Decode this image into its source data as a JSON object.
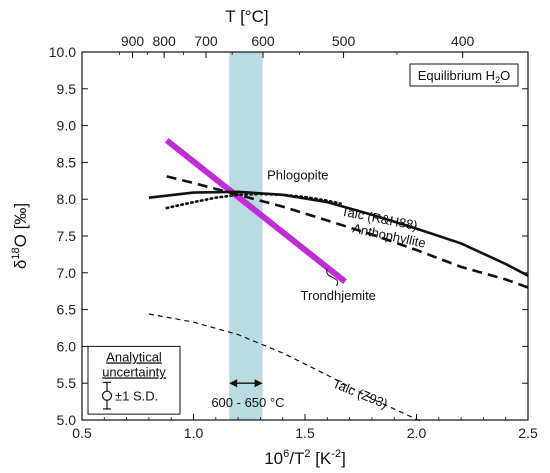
{
  "chart_data": {
    "type": "line",
    "xlabel": {
      "base": "10",
      "sup1": "6",
      "mid": "/T",
      "sup2": "2",
      "tail": " [K",
      "sup3": "-2",
      "end": "]"
    },
    "ylabel": {
      "delta": "δ",
      "sup": "18",
      "rest": "O [‰]"
    },
    "toplabel": "T [°C]",
    "xlim": [
      0.5,
      2.5
    ],
    "ylim": [
      5.0,
      10.0
    ],
    "xticks": [
      "0.5",
      "1.0",
      "1.5",
      "2.0",
      "2.5"
    ],
    "yticks": [
      "5.0",
      "5.5",
      "6.0",
      "6.5",
      "7.0",
      "7.5",
      "8.0",
      "8.5",
      "9.0",
      "9.5",
      "10.0"
    ],
    "top_ticks": [
      {
        "label": "900",
        "celsius": 900
      },
      {
        "label": "800",
        "celsius": 800
      },
      {
        "label": "700",
        "celsius": 700
      },
      {
        "label": "600",
        "celsius": 600
      },
      {
        "label": "500",
        "celsius": 500
      },
      {
        "label": "400",
        "celsius": 400
      }
    ],
    "temperature_band": {
      "x_from": 1.16,
      "x_to": 1.31,
      "color": "#b9dce0"
    },
    "band_label": "600 - 650 °C",
    "legend_box": {
      "text": "Equilibrium H",
      "sub": "2",
      "tail": "O",
      "placement": "top-right"
    },
    "uncertainty_box": {
      "line1": "Analytical",
      "line2": "uncertainty",
      "value": "±1 S.D.",
      "placement": "bottom-left",
      "y_center": 5.33,
      "sd": 0.18
    },
    "series": [
      {
        "name": "Trondhjemite",
        "color": "#c22cd8",
        "style": "solid",
        "width": 6,
        "x": [
          0.88,
          1.68
        ],
        "y": [
          8.8,
          6.88
        ],
        "label_x": 1.48,
        "label_y": 6.63
      },
      {
        "name": "Phlogopite",
        "color": "#111111",
        "style": "dotted",
        "width": 2.6,
        "x": [
          0.88,
          1.0,
          1.1,
          1.2,
          1.3,
          1.4,
          1.5,
          1.6,
          1.66
        ],
        "y": [
          7.88,
          7.96,
          8.02,
          8.06,
          8.07,
          8.06,
          8.03,
          7.98,
          7.94
        ],
        "label_x": 1.33,
        "label_y": 8.27
      },
      {
        "name": "Talc (R&H88)",
        "color": "#111111",
        "style": "solid",
        "width": 2.6,
        "x": [
          0.8,
          1.0,
          1.2,
          1.4,
          1.6,
          1.8,
          2.0,
          2.2,
          2.4,
          2.5
        ],
        "y": [
          8.02,
          8.09,
          8.1,
          8.06,
          7.96,
          7.79,
          7.6,
          7.4,
          7.12,
          6.96
        ],
        "label_x": 1.66,
        "label_y": 7.78
      },
      {
        "name": "Anthophyllite",
        "color": "#111111",
        "style": "dashed",
        "width": 2.6,
        "x": [
          0.88,
          1.0,
          1.2,
          1.4,
          1.6,
          1.8,
          2.0,
          2.2,
          2.4,
          2.5
        ],
        "y": [
          8.31,
          8.22,
          8.06,
          7.9,
          7.71,
          7.52,
          7.31,
          7.08,
          6.91,
          6.8
        ],
        "label_x": 1.71,
        "label_y": 7.55
      },
      {
        "name": "Talc (Z93)",
        "color": "#111111",
        "style": "thin-dashed",
        "width": 1.2,
        "x": [
          0.8,
          1.0,
          1.2,
          1.4,
          1.6,
          1.8,
          2.0,
          2.03
        ],
        "y": [
          6.44,
          6.33,
          6.16,
          5.91,
          5.61,
          5.29,
          5.01,
          4.97
        ],
        "label_x": 1.62,
        "label_y": 5.45
      }
    ]
  }
}
